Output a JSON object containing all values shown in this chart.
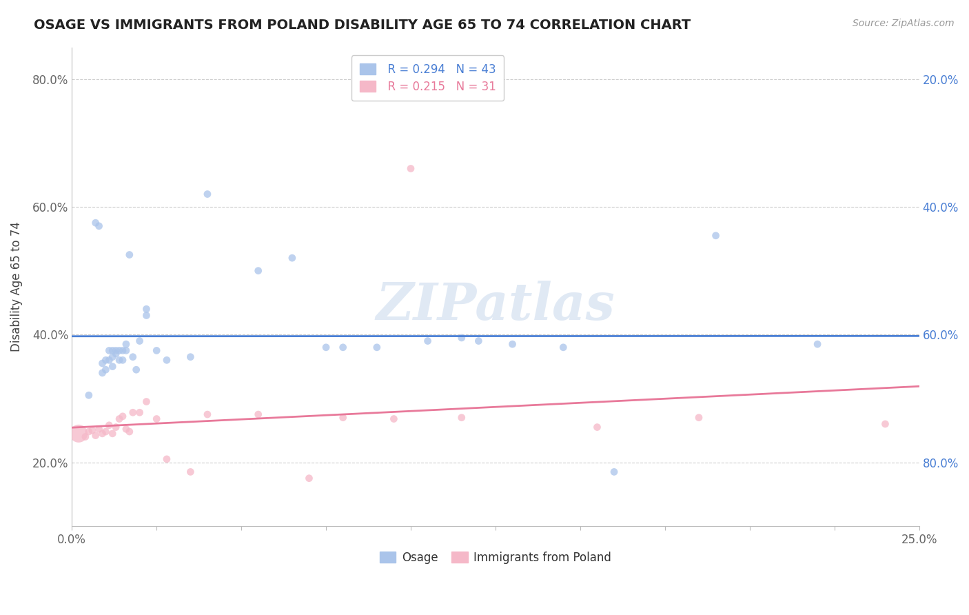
{
  "title": "OSAGE VS IMMIGRANTS FROM POLAND DISABILITY AGE 65 TO 74 CORRELATION CHART",
  "source_text": "Source: ZipAtlas.com",
  "ylabel": "Disability Age 65 to 74",
  "xlim": [
    0.0,
    0.25
  ],
  "ylim": [
    0.1,
    0.85
  ],
  "yticks": [
    0.2,
    0.4,
    0.6,
    0.8
  ],
  "ytick_labels": [
    "20.0%",
    "40.0%",
    "60.0%",
    "80.0%"
  ],
  "xtick_positions": [
    0.0,
    0.025,
    0.05,
    0.075,
    0.1,
    0.125,
    0.15,
    0.175,
    0.2,
    0.225,
    0.25
  ],
  "xtick_labels": [
    "0.0%",
    "",
    "",
    "",
    "",
    "",
    "",
    "",
    "",
    "",
    "25.0%"
  ],
  "right_ytick_labels": [
    "80.0%",
    "60.0%",
    "40.0%",
    "20.0%"
  ],
  "legend_R1": "R = 0.294",
  "legend_N1": "N = 43",
  "legend_R2": "R = 0.215",
  "legend_N2": "N = 31",
  "legend_labels": [
    "Osage",
    "Immigrants from Poland"
  ],
  "color_osage": "#aac4ea",
  "color_poland": "#f5b8c8",
  "color_line_osage": "#4a7fd4",
  "color_line_poland": "#e8799a",
  "watermark": "ZIPatlas",
  "background_color": "#ffffff",
  "grid_color": "#cccccc",
  "osage_x": [
    0.005,
    0.007,
    0.008,
    0.009,
    0.009,
    0.01,
    0.01,
    0.011,
    0.011,
    0.012,
    0.012,
    0.012,
    0.013,
    0.013,
    0.014,
    0.014,
    0.015,
    0.015,
    0.016,
    0.016,
    0.017,
    0.018,
    0.019,
    0.02,
    0.022,
    0.022,
    0.025,
    0.028,
    0.035,
    0.04,
    0.055,
    0.065,
    0.075,
    0.08,
    0.09,
    0.105,
    0.115,
    0.12,
    0.13,
    0.145,
    0.16,
    0.19,
    0.22
  ],
  "osage_y": [
    0.305,
    0.575,
    0.57,
    0.355,
    0.34,
    0.36,
    0.345,
    0.375,
    0.36,
    0.375,
    0.365,
    0.35,
    0.375,
    0.37,
    0.375,
    0.36,
    0.375,
    0.36,
    0.385,
    0.375,
    0.525,
    0.365,
    0.345,
    0.39,
    0.43,
    0.44,
    0.375,
    0.36,
    0.365,
    0.62,
    0.5,
    0.52,
    0.38,
    0.38,
    0.38,
    0.39,
    0.395,
    0.39,
    0.385,
    0.38,
    0.185,
    0.555,
    0.385
  ],
  "osage_sizes": [
    60,
    60,
    60,
    60,
    60,
    60,
    60,
    60,
    60,
    60,
    60,
    60,
    60,
    60,
    60,
    60,
    60,
    60,
    60,
    60,
    60,
    60,
    60,
    60,
    60,
    60,
    60,
    60,
    60,
    60,
    60,
    60,
    60,
    60,
    60,
    60,
    60,
    60,
    60,
    60,
    60,
    60,
    60
  ],
  "poland_x": [
    0.002,
    0.004,
    0.005,
    0.006,
    0.007,
    0.008,
    0.009,
    0.01,
    0.011,
    0.012,
    0.013,
    0.014,
    0.015,
    0.016,
    0.017,
    0.018,
    0.02,
    0.022,
    0.025,
    0.028,
    0.035,
    0.04,
    0.055,
    0.07,
    0.08,
    0.095,
    0.1,
    0.115,
    0.155,
    0.185,
    0.24
  ],
  "poland_y": [
    0.245,
    0.24,
    0.248,
    0.25,
    0.242,
    0.252,
    0.245,
    0.248,
    0.258,
    0.245,
    0.255,
    0.268,
    0.272,
    0.252,
    0.248,
    0.278,
    0.278,
    0.295,
    0.268,
    0.205,
    0.185,
    0.275,
    0.275,
    0.175,
    0.27,
    0.268,
    0.66,
    0.27,
    0.255,
    0.27,
    0.26
  ],
  "poland_sizes": [
    350,
    60,
    60,
    60,
    60,
    60,
    60,
    60,
    60,
    60,
    60,
    60,
    60,
    60,
    60,
    60,
    60,
    60,
    60,
    60,
    60,
    60,
    60,
    60,
    60,
    60,
    60,
    60,
    60,
    60,
    60
  ]
}
